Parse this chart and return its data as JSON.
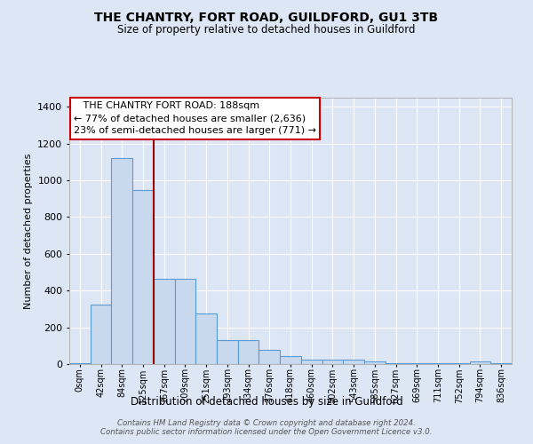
{
  "title": "THE CHANTRY, FORT ROAD, GUILDFORD, GU1 3TB",
  "subtitle": "Size of property relative to detached houses in Guildford",
  "xlabel": "Distribution of detached houses by size in Guildford",
  "ylabel": "Number of detached properties",
  "bar_labels": [
    "0sqm",
    "42sqm",
    "84sqm",
    "125sqm",
    "167sqm",
    "209sqm",
    "251sqm",
    "293sqm",
    "334sqm",
    "376sqm",
    "418sqm",
    "460sqm",
    "502sqm",
    "543sqm",
    "585sqm",
    "627sqm",
    "669sqm",
    "711sqm",
    "752sqm",
    "794sqm",
    "836sqm"
  ],
  "bar_values": [
    5,
    325,
    1120,
    945,
    465,
    465,
    275,
    130,
    130,
    75,
    45,
    25,
    25,
    25,
    15,
    5,
    5,
    5,
    5,
    15,
    5
  ],
  "bar_color": "#c8d9ee",
  "bar_edge_color": "#5b9bd5",
  "property_line_x": 3.5,
  "annotation_text_line1": "   THE CHANTRY FORT ROAD: 188sqm",
  "annotation_text_line2": "← 77% of detached houses are smaller (2,636)",
  "annotation_text_line3": "23% of semi-detached houses are larger (771) →",
  "annotation_box_color": "#ffffff",
  "annotation_box_edge": "#cc0000",
  "ylim": [
    0,
    1450
  ],
  "yticks": [
    0,
    200,
    400,
    600,
    800,
    1000,
    1200,
    1400
  ],
  "background_color": "#dce6f5",
  "grid_color": "#ffffff",
  "footer_line1": "Contains HM Land Registry data © Crown copyright and database right 2024.",
  "footer_line2": "Contains public sector information licensed under the Open Government Licence v3.0."
}
